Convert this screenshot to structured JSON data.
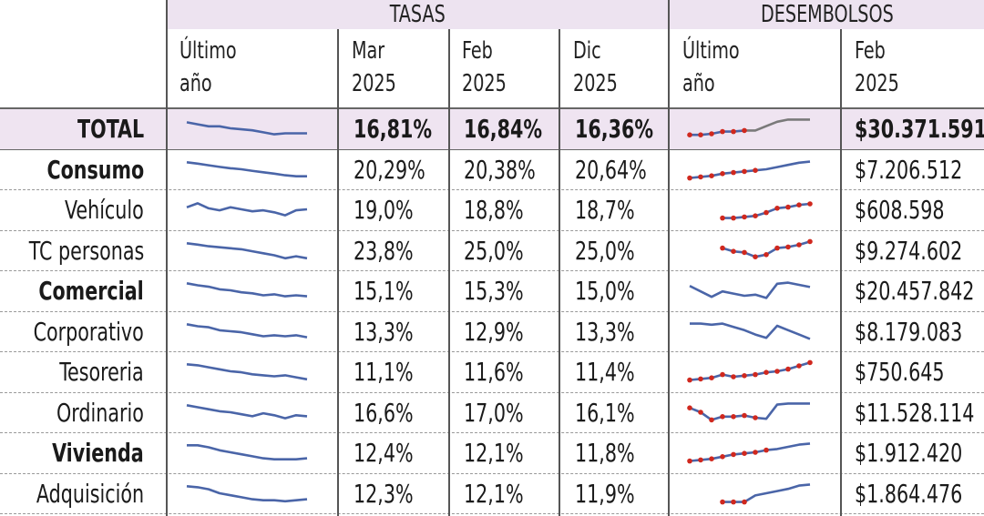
{
  "group_headers": {
    "tasas": "TASAS",
    "desembolsos": "DESEMBOLSOS"
  },
  "columns": {
    "tasas_ultimo": "Último\naño",
    "mar2025": "Mar\n2025",
    "feb2025": "Feb\n2025",
    "dic2025": "Dic\n2025",
    "desemb_ultimo": "Último\naño",
    "desemb_feb2025": "Feb\n2025"
  },
  "colors": {
    "highlight": "#efe4f1",
    "spark_line": "#4a65a8",
    "marker": "#d0281e",
    "total_line": "#7a7a7a"
  },
  "rows": [
    {
      "label": "TOTAL",
      "bold": true,
      "highlight": true,
      "mar": "16,81%",
      "feb": "16,84%",
      "dic": "16,36%",
      "desembolso": "$30.371.591",
      "tasa_trend": [
        0.8,
        0.7,
        0.6,
        0.6,
        0.5,
        0.45,
        0.4,
        0.3,
        0.2,
        0.25,
        0.25,
        0.25
      ],
      "desemb_trend": [
        0.2,
        0.2,
        0.25,
        0.35,
        0.35,
        0.4,
        0.4,
        0.6,
        0.8,
        0.9,
        0.9,
        0.9
      ],
      "desemb_marked": 6
    },
    {
      "label": "Consumo",
      "bold": true,
      "mar": "20,29%",
      "feb": "20,38%",
      "dic": "20,64%",
      "desembolso": "$7.206.512",
      "tasa_trend": [
        0.85,
        0.78,
        0.7,
        0.62,
        0.55,
        0.5,
        0.42,
        0.35,
        0.28,
        0.2,
        0.15,
        0.15
      ],
      "desemb_trend": [
        0.1,
        0.15,
        0.2,
        0.3,
        0.35,
        0.4,
        0.45,
        0.5,
        0.6,
        0.7,
        0.8,
        0.85
      ],
      "desemb_marked": 7
    },
    {
      "label": "Vehículo",
      "mar": "19,0%",
      "feb": "18,8%",
      "dic": "18,7%",
      "desembolso": "$608.598",
      "tasa_trend": [
        0.6,
        0.8,
        0.55,
        0.45,
        0.6,
        0.5,
        0.4,
        0.45,
        0.35,
        0.2,
        0.45,
        0.5
      ],
      "desemb_trend": [
        null,
        null,
        null,
        0.1,
        0.1,
        0.15,
        0.2,
        0.35,
        0.55,
        0.6,
        0.7,
        0.75
      ],
      "desemb_marked": 12
    },
    {
      "label": "TC personas",
      "mar": "23,8%",
      "feb": "25,0%",
      "dic": "25,0%",
      "desembolso": "$9.274.602",
      "tasa_trend": [
        0.85,
        0.78,
        0.7,
        0.65,
        0.6,
        0.55,
        0.45,
        0.35,
        0.25,
        0.1,
        0.2,
        0.1
      ],
      "desemb_trend": [
        null,
        null,
        null,
        0.6,
        0.45,
        0.4,
        0.2,
        0.3,
        0.6,
        0.65,
        0.75,
        0.9
      ],
      "desemb_marked": 12
    },
    {
      "label": "Comercial",
      "bold": true,
      "mar": "15,1%",
      "feb": "15,3%",
      "dic": "15,0%",
      "desembolso": "$20.457.842",
      "tasa_trend": [
        0.85,
        0.75,
        0.68,
        0.55,
        0.5,
        0.4,
        0.35,
        0.25,
        0.3,
        0.2,
        0.25,
        0.2
      ],
      "desemb_trend": [
        0.7,
        0.45,
        0.2,
        0.45,
        0.35,
        0.25,
        0.3,
        0.15,
        0.8,
        0.85,
        0.75,
        0.65
      ],
      "desemb_marked": 0
    },
    {
      "label": "Corporativo",
      "mar": "13,3%",
      "feb": "12,9%",
      "dic": "13,3%",
      "desembolso": "$8.179.083",
      "tasa_trend": [
        0.85,
        0.75,
        0.7,
        0.55,
        0.5,
        0.45,
        0.35,
        0.25,
        0.3,
        0.25,
        0.3,
        0.2
      ],
      "desemb_trend": [
        0.85,
        0.85,
        0.8,
        0.85,
        0.7,
        0.55,
        0.35,
        0.2,
        0.75,
        0.55,
        0.35,
        0.15
      ],
      "desemb_marked": 0
    },
    {
      "label": "Tesoreria",
      "mar": "11,1%",
      "feb": "11,6%",
      "dic": "11,4%",
      "desembolso": "$750.645",
      "tasa_trend": [
        0.85,
        0.8,
        0.7,
        0.6,
        0.5,
        0.45,
        0.35,
        0.3,
        0.25,
        0.3,
        0.2,
        0.1
      ],
      "desemb_trend": [
        0.1,
        0.15,
        0.2,
        0.35,
        0.25,
        0.3,
        0.35,
        0.45,
        0.5,
        0.6,
        0.75,
        0.9
      ],
      "desemb_marked": 12
    },
    {
      "label": "Ordinario",
      "mar": "16,6%",
      "feb": "17,0%",
      "dic": "16,1%",
      "desembolso": "$11.528.114",
      "tasa_trend": [
        0.85,
        0.75,
        0.65,
        0.55,
        0.5,
        0.4,
        0.3,
        0.45,
        0.35,
        0.2,
        0.35,
        0.3
      ],
      "desemb_trend": [
        0.7,
        0.5,
        0.15,
        0.3,
        0.3,
        0.35,
        0.25,
        0.2,
        0.85,
        0.9,
        0.9,
        0.9
      ],
      "desemb_marked": 7
    },
    {
      "label": "Vivienda",
      "bold": true,
      "mar": "12,4%",
      "feb": "12,1%",
      "dic": "11,8%",
      "desembolso": "$1.912.420",
      "tasa_trend": [
        0.85,
        0.85,
        0.75,
        0.6,
        0.5,
        0.4,
        0.3,
        0.2,
        0.15,
        0.15,
        0.15,
        0.2
      ],
      "desemb_trend": [
        0.1,
        0.15,
        0.2,
        0.3,
        0.4,
        0.45,
        0.5,
        0.6,
        0.65,
        0.75,
        0.85,
        0.9
      ],
      "desemb_marked": 8
    },
    {
      "label": "Adquisición",
      "mar": "12,3%",
      "feb": "12,1%",
      "dic": "11,9%",
      "desembolso": "$1.864.476",
      "tasa_trend": [
        0.85,
        0.8,
        0.7,
        0.5,
        0.4,
        0.3,
        0.2,
        0.15,
        0.15,
        0.1,
        0.15,
        0.2
      ],
      "desemb_trend": [
        null,
        null,
        null,
        0.1,
        0.1,
        0.1,
        0.4,
        0.5,
        0.6,
        0.7,
        0.85,
        0.9
      ],
      "desemb_marked": 6
    }
  ],
  "chart_data": {
    "type": "table",
    "columns": [
      "",
      "Último año",
      "Mar 2025",
      "Feb 2025",
      "Dic 2025",
      "Último año",
      "Feb 2025"
    ],
    "groups": [
      {
        "name": "TASAS",
        "columns": [
          "Último año",
          "Mar 2025",
          "Feb 2025",
          "Dic 2025"
        ]
      },
      {
        "name": "DESEMBOLSOS",
        "columns": [
          "Último año",
          "Feb 2025"
        ]
      }
    ],
    "rows": [
      [
        "TOTAL",
        "sparkline",
        "16,81%",
        "16,84%",
        "16,36%",
        "sparkline",
        "$30.371.591"
      ],
      [
        "Consumo",
        "sparkline",
        "20,29%",
        "20,38%",
        "20,64%",
        "sparkline",
        "$7.206.512"
      ],
      [
        "Vehículo",
        "sparkline",
        "19,0%",
        "18,8%",
        "18,7%",
        "sparkline",
        "$608.598"
      ],
      [
        "TC personas",
        "sparkline",
        "23,8%",
        "25,0%",
        "25,0%",
        "sparkline",
        "$9.274.602"
      ],
      [
        "Comercial",
        "sparkline",
        "15,1%",
        "15,3%",
        "15,0%",
        "sparkline",
        "$20.457.842"
      ],
      [
        "Corporativo",
        "sparkline",
        "13,3%",
        "12,9%",
        "13,3%",
        "sparkline",
        "$8.179.083"
      ],
      [
        "Tesoreria",
        "sparkline",
        "11,1%",
        "11,6%",
        "11,4%",
        "sparkline",
        "$750.645"
      ],
      [
        "Ordinario",
        "sparkline",
        "16,6%",
        "17,0%",
        "16,1%",
        "sparkline",
        "$11.528.114"
      ],
      [
        "Vivienda",
        "sparkline",
        "12,4%",
        "12,1%",
        "11,8%",
        "sparkline",
        "$1.912.420"
      ],
      [
        "Adquisición",
        "sparkline",
        "12,3%",
        "12,1%",
        "11,9%",
        "sparkline",
        "$1.864.476"
      ]
    ]
  }
}
